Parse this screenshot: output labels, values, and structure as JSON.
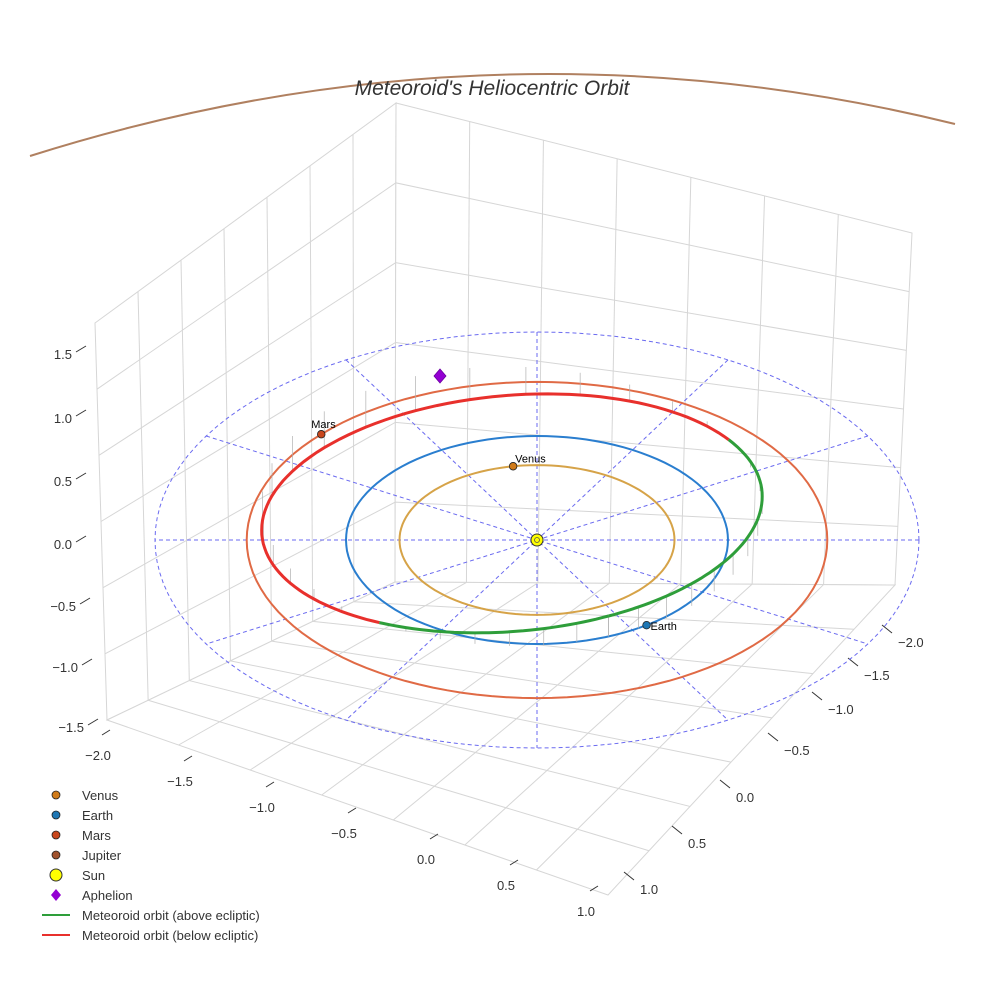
{
  "chart_data": {
    "type": "orbit-3d",
    "title": "Meteoroid's Heliocentric Orbit",
    "z_ticks": [
      "1.5",
      "1.0",
      "0.5",
      "0.0",
      "−0.5",
      "−1.0",
      "−1.5"
    ],
    "x_ticks": [
      "−2.0",
      "−1.5",
      "−1.0",
      "−0.5",
      "0.0",
      "0.5",
      "1.0"
    ],
    "y_ticks": [
      "−2.0",
      "−1.5",
      "−1.0",
      "−0.5",
      "0.0",
      "0.5",
      "1.0"
    ],
    "grid": true,
    "ecliptic_grid_radius_au": 2.0,
    "planets": [
      {
        "name": "Venus",
        "orbit_radius_au": 0.72,
        "position_angle_deg": 100,
        "color": "#d6a348",
        "marker": "#d07a18"
      },
      {
        "name": "Earth",
        "orbit_radius_au": 1.0,
        "position_angle_deg": 305,
        "color": "#2a7ecf",
        "marker": "#1f77b4"
      },
      {
        "name": "Mars",
        "orbit_radius_au": 1.52,
        "position_angle_deg": 138,
        "color": "#e06a45",
        "marker": "#c8461c"
      },
      {
        "name": "Jupiter",
        "orbit_radius_au": 5.2,
        "color": "#b08060",
        "marker": "#a0522d"
      }
    ],
    "sun": {
      "label": "Sun",
      "color": "#ffff00"
    },
    "aphelion": {
      "label": "Aphelion",
      "color": "#9400d3"
    },
    "meteoroid": {
      "perihelion_au": 1.0,
      "aphelion_au": 1.7,
      "inclination_deg": 10,
      "above_label": "Meteoroid orbit (above ecliptic)",
      "below_label": "Meteoroid orbit (below ecliptic)",
      "above_color": "#2e9e3a",
      "below_color": "#e8302c"
    }
  },
  "legend": [
    {
      "label": "Venus",
      "kind": "dot",
      "color": "#d07a18"
    },
    {
      "label": "Earth",
      "kind": "dot",
      "color": "#1f77b4"
    },
    {
      "label": "Mars",
      "kind": "dot",
      "color": "#c8461c"
    },
    {
      "label": "Jupiter",
      "kind": "dot",
      "color": "#a0522d"
    },
    {
      "label": "Sun",
      "kind": "sun",
      "color": "#ffff00"
    },
    {
      "label": "Aphelion",
      "kind": "diamond",
      "color": "#9400d3"
    },
    {
      "label": "Meteoroid orbit (above ecliptic)",
      "kind": "line",
      "color": "#2e9e3a"
    },
    {
      "label": "Meteoroid orbit (below ecliptic)",
      "kind": "line",
      "color": "#e8302c"
    }
  ]
}
